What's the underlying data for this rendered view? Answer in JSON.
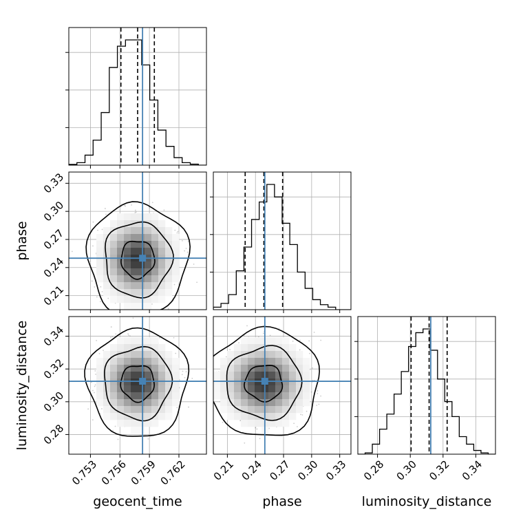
{
  "chart_data": {
    "type": "corner",
    "truth_color": "#4682b4",
    "hist_color": "#000000",
    "parameters": [
      {
        "name": "geocent_time",
        "label": "geocent_time",
        "range": [
          0.7508,
          0.7648
        ],
        "ticks": [
          0.753,
          0.756,
          0.759,
          0.762
        ],
        "tick_labels": [
          "0.753",
          "0.756",
          "0.759",
          "0.762"
        ],
        "truth": 0.7583,
        "quantiles": [
          0.7561,
          0.7578,
          0.7595
        ],
        "hist": [
          0.006,
          0.02,
          0.08,
          0.2,
          0.42,
          0.78,
          0.95,
          1.0,
          1.0,
          0.8,
          0.52,
          0.28,
          0.15,
          0.06,
          0.02,
          0.008,
          0.0
        ]
      },
      {
        "name": "phase",
        "label": "phase",
        "range": [
          0.195,
          0.342
        ],
        "ticks": [
          0.21,
          0.24,
          0.27,
          0.3,
          0.33
        ],
        "tick_labels": [
          "0.21",
          "0.24",
          "0.27",
          "0.30",
          "0.33"
        ],
        "truth": 0.25,
        "quantiles": [
          0.229,
          0.249,
          0.269
        ],
        "hist": [
          0.02,
          0.05,
          0.12,
          0.31,
          0.5,
          0.72,
          0.86,
          1.0,
          0.9,
          0.69,
          0.52,
          0.3,
          0.17,
          0.08,
          0.04,
          0.02,
          0.0,
          0.0
        ]
      },
      {
        "name": "luminosity_distance",
        "label": "luminosity_distance",
        "range": [
          0.268,
          0.352
        ],
        "ticks": [
          0.28,
          0.3,
          0.32,
          0.34
        ],
        "tick_labels": [
          "0.28",
          "0.30",
          "0.32",
          "0.34"
        ],
        "truth": 0.3125,
        "quantiles": [
          0.3005,
          0.3115,
          0.3225
        ],
        "hist": [
          0.0,
          0.01,
          0.08,
          0.2,
          0.32,
          0.48,
          0.66,
          0.86,
          0.97,
          1.0,
          0.83,
          0.6,
          0.42,
          0.3,
          0.14,
          0.08,
          0.03,
          0.01,
          0.0
        ]
      }
    ],
    "contour_levels": [
      0.393,
      0.865,
      0.989
    ],
    "grid": true
  }
}
